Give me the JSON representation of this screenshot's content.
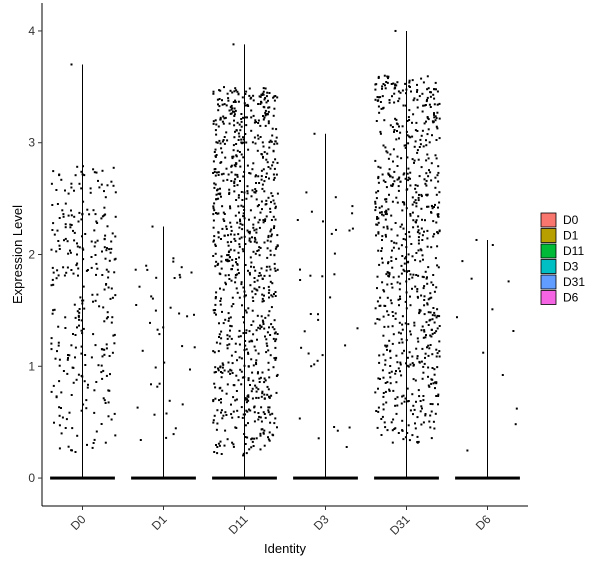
{
  "chart_data": {
    "type": "violin-jitter",
    "title": "",
    "xlabel": "Identity",
    "ylabel": "Expression Level",
    "categories": [
      "D0",
      "D1",
      "D11",
      "D3",
      "D31",
      "D6"
    ],
    "ylim": [
      -0.25,
      4.25
    ],
    "yticks": [
      0,
      1,
      2,
      3,
      4
    ],
    "legend_position": "right",
    "grid": false,
    "series": [
      {
        "name": "D0",
        "color": "#F8766D",
        "max": 3.7,
        "zero_fraction": 0.8,
        "n_points": 300,
        "range_low": 0.2,
        "range_high": 2.8
      },
      {
        "name": "D1",
        "color": "#B79F00",
        "max": 2.25,
        "zero_fraction": 0.95,
        "n_points": 42,
        "range_low": 0.2,
        "range_high": 2.0
      },
      {
        "name": "D11",
        "color": "#00BA38",
        "max": 3.88,
        "zero_fraction": 0.45,
        "n_points": 900,
        "range_low": 0.2,
        "range_high": 3.5
      },
      {
        "name": "D3",
        "color": "#00BFC4",
        "max": 3.08,
        "zero_fraction": 0.95,
        "n_points": 36,
        "range_low": 0.2,
        "range_high": 2.7
      },
      {
        "name": "D31",
        "color": "#619CFF",
        "max": 4.0,
        "zero_fraction": 0.45,
        "n_points": 750,
        "range_low": 0.3,
        "range_high": 3.6
      },
      {
        "name": "D6",
        "color": "#F564E3",
        "max": 2.13,
        "zero_fraction": 0.97,
        "n_points": 12,
        "range_low": 0.2,
        "range_high": 2.1
      }
    ]
  }
}
